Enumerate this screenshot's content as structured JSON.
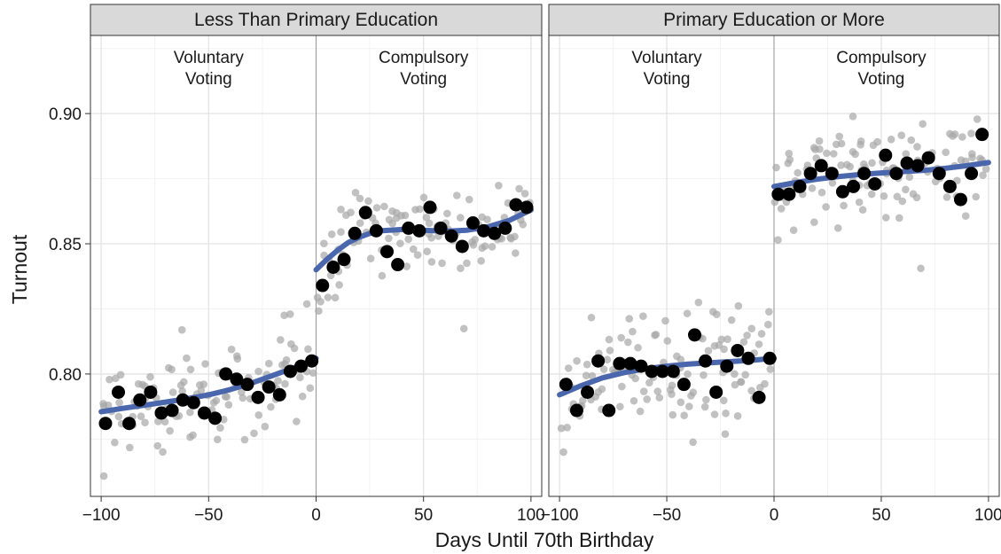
{
  "chart_data": {
    "type": "scatter",
    "xlabel": "Days Until 70th Birthday",
    "ylabel": "Turnout",
    "xlim": [
      -105,
      105
    ],
    "ylim": [
      0.753,
      0.93
    ],
    "x_ticks": [
      -100,
      -50,
      0,
      50,
      100
    ],
    "x_tick_labels": [
      "−100",
      "−50",
      "0",
      "50",
      "100"
    ],
    "y_ticks": [
      0.8,
      0.85,
      0.9
    ],
    "y_tick_labels": [
      "0.80",
      "0.85",
      "0.90"
    ],
    "grid": true,
    "colors": {
      "raw_points": "#a6a6a6",
      "binned_means": "#000000",
      "fit_line": "#4a66ac",
      "strip_fill": "#d9d9d9",
      "grid_major": "#e3e3e3",
      "grid_minor": "#f2f2f2"
    },
    "panels": [
      {
        "title": "Less Than Primary Education",
        "annotations": [
          {
            "x": -50,
            "lines": [
              "Voluntary",
              "Voting"
            ]
          },
          {
            "x": 50,
            "lines": [
              "Compulsory",
              "Voting"
            ]
          }
        ],
        "binned_means": {
          "x": [
            -98,
            -92,
            -87,
            -82,
            -77,
            -72,
            -67,
            -62,
            -57,
            -52,
            -47,
            -42,
            -37,
            -32,
            -27,
            -22,
            -17,
            -12,
            -7,
            -2,
            3,
            8,
            13,
            18,
            23,
            28,
            33,
            38,
            43,
            48,
            53,
            58,
            63,
            68,
            73,
            78,
            83,
            88,
            93,
            98
          ],
          "y": [
            0.781,
            0.793,
            0.781,
            0.79,
            0.793,
            0.785,
            0.786,
            0.79,
            0.789,
            0.785,
            0.783,
            0.8,
            0.798,
            0.796,
            0.791,
            0.795,
            0.792,
            0.801,
            0.803,
            0.805,
            0.834,
            0.841,
            0.844,
            0.854,
            0.862,
            0.855,
            0.847,
            0.842,
            0.856,
            0.855,
            0.864,
            0.856,
            0.853,
            0.849,
            0.858,
            0.855,
            0.854,
            0.856,
            0.865,
            0.864
          ]
        },
        "fit": [
          {
            "x": [
              -100,
              -90,
              -80,
              -70,
              -60,
              -50,
              -40,
              -30,
              -20,
              -10,
              0
            ],
            "y": [
              0.7855,
              0.7868,
              0.788,
              0.7892,
              0.7905,
              0.792,
              0.794,
              0.7965,
              0.7995,
              0.8025,
              0.806
            ]
          },
          {
            "x": [
              0,
              5,
              10,
              15,
              20,
              25,
              30,
              40,
              50,
              60,
              70,
              80,
              90,
              100
            ],
            "y": [
              0.84,
              0.844,
              0.8475,
              0.8505,
              0.8525,
              0.854,
              0.855,
              0.8555,
              0.8552,
              0.8548,
              0.8552,
              0.8565,
              0.859,
              0.863
            ]
          }
        ]
      },
      {
        "title": "Primary Education or More",
        "annotations": [
          {
            "x": -50,
            "lines": [
              "Voluntary",
              "Voting"
            ]
          },
          {
            "x": 50,
            "lines": [
              "Compulsory",
              "Voting"
            ]
          }
        ],
        "binned_means": {
          "x": [
            -97,
            -92,
            -87,
            -82,
            -77,
            -72,
            -67,
            -62,
            -57,
            -52,
            -47,
            -42,
            -37,
            -32,
            -27,
            -22,
            -17,
            -12,
            -7,
            -2,
            2,
            7,
            12,
            17,
            22,
            27,
            32,
            37,
            42,
            47,
            52,
            57,
            62,
            67,
            72,
            77,
            82,
            87,
            92,
            97
          ],
          "y": [
            0.796,
            0.786,
            0.793,
            0.805,
            0.786,
            0.804,
            0.804,
            0.803,
            0.801,
            0.801,
            0.801,
            0.796,
            0.815,
            0.805,
            0.793,
            0.803,
            0.809,
            0.806,
            0.791,
            0.806,
            0.869,
            0.869,
            0.872,
            0.877,
            0.88,
            0.877,
            0.87,
            0.872,
            0.877,
            0.873,
            0.884,
            0.877,
            0.881,
            0.88,
            0.883,
            0.877,
            0.872,
            0.867,
            0.877,
            0.892
          ]
        },
        "fit": [
          {
            "x": [
              -100,
              -90,
              -80,
              -70,
              -60,
              -50,
              -40,
              -30,
              -20,
              -10,
              0
            ],
            "y": [
              0.792,
              0.7955,
              0.7985,
              0.8005,
              0.802,
              0.803,
              0.8038,
              0.8043,
              0.8048,
              0.8053,
              0.806
            ]
          },
          {
            "x": [
              0,
              10,
              20,
              30,
              40,
              50,
              60,
              70,
              80,
              90,
              100
            ],
            "y": [
              0.872,
              0.8735,
              0.8748,
              0.8758,
              0.8766,
              0.8772,
              0.8777,
              0.8782,
              0.879,
              0.88,
              0.8812
            ]
          }
        ]
      }
    ],
    "raw_points_note": ""
  }
}
